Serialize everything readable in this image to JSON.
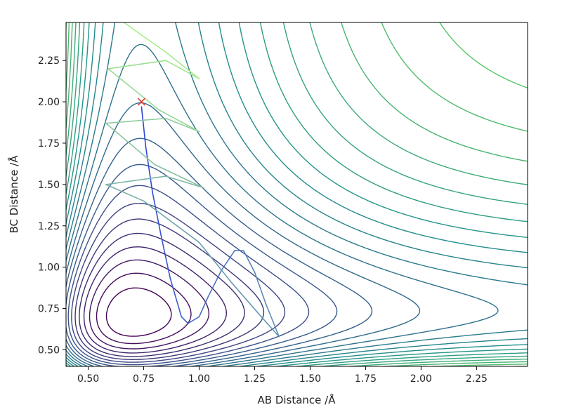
{
  "chart_data": {
    "type": "contour",
    "xlabel": "AB Distance /Å",
    "ylabel": "BC Distance /Å",
    "xlim": [
      0.4,
      2.48
    ],
    "ylim": [
      0.4,
      2.48
    ],
    "x_ticks": [
      "0.50",
      "0.75",
      "1.00",
      "1.25",
      "1.50",
      "1.75",
      "2.00",
      "2.25"
    ],
    "y_ticks": [
      "0.50",
      "0.75",
      "1.00",
      "1.25",
      "1.50",
      "1.75",
      "2.00",
      "2.25"
    ],
    "grid": false,
    "colormap": "viridis",
    "colors": {
      "contour_dark": "#30185a",
      "contour_mid": "#2a7d8e",
      "contour_light": "#7ad151",
      "contour_yellow": "#fde725",
      "trajectory_start": "#2b46d6",
      "trajectory_end": "#a8f08a",
      "start_marker": "#e0342a"
    },
    "start_marker": {
      "symbol": "x",
      "x": 0.74,
      "y": 2.0
    },
    "trajectory": [
      [
        0.74,
        1.97
      ],
      [
        0.76,
        1.72
      ],
      [
        0.79,
        1.45
      ],
      [
        0.83,
        1.18
      ],
      [
        0.87,
        0.93
      ],
      [
        0.92,
        0.7
      ],
      [
        0.95,
        0.66
      ],
      [
        1.0,
        0.7
      ],
      [
        1.04,
        0.82
      ],
      [
        1.1,
        0.98
      ],
      [
        1.16,
        1.1
      ],
      [
        1.2,
        1.1
      ],
      [
        1.25,
        0.97
      ],
      [
        1.3,
        0.78
      ],
      [
        1.36,
        0.58
      ],
      [
        1.28,
        0.7
      ],
      [
        1.15,
        0.9
      ],
      [
        1.0,
        1.15
      ],
      [
        0.88,
        1.27
      ],
      [
        0.75,
        1.4
      ],
      [
        0.58,
        1.5
      ],
      [
        0.85,
        1.55
      ],
      [
        1.02,
        1.48
      ],
      [
        0.8,
        1.62
      ],
      [
        0.58,
        1.87
      ],
      [
        0.85,
        1.9
      ],
      [
        1.0,
        1.82
      ],
      [
        0.82,
        1.95
      ],
      [
        0.59,
        2.2
      ],
      [
        0.85,
        2.25
      ],
      [
        1.0,
        2.14
      ],
      [
        0.85,
        2.3
      ],
      [
        0.65,
        2.49
      ]
    ]
  }
}
